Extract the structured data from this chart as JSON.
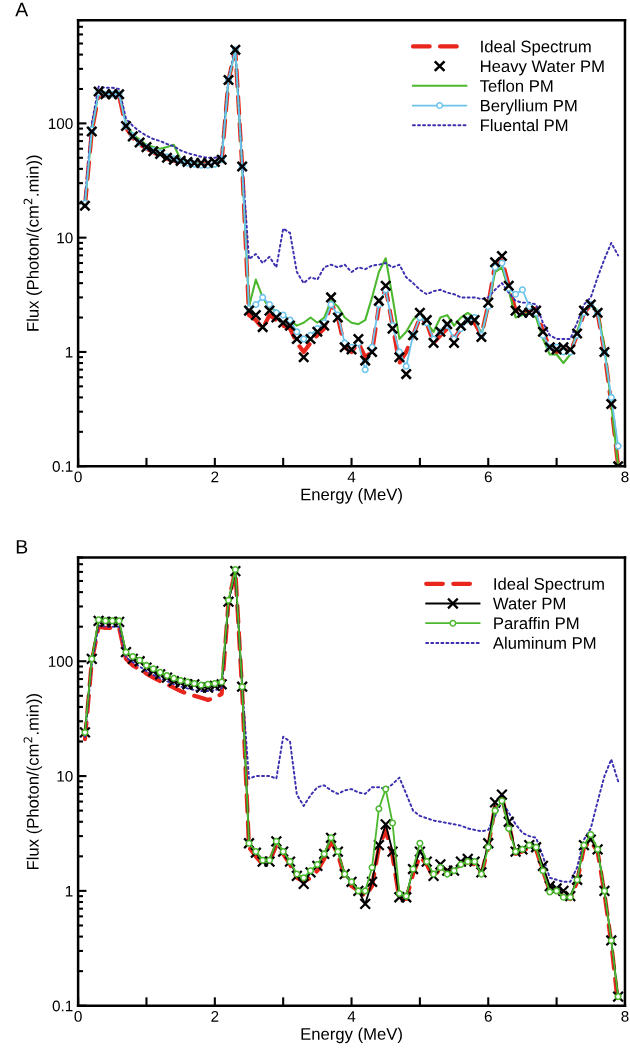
{
  "chart_data": [
    {
      "type": "line",
      "title": "A",
      "xlabel": "Energy (MeV)",
      "ylabel": "Flux (Photon/(cm$^{2}$.min))",
      "log": "y",
      "legend": "top right",
      "grid": false,
      "xlim": [
        0,
        8
      ],
      "xticks": [
        0,
        {
          "value": 1,
          "label": null
        },
        2,
        {
          "value": 3,
          "label": null
        },
        4,
        {
          "value": 5,
          "label": null
        },
        6,
        {
          "value": 7,
          "label": null
        },
        8
      ],
      "ylim": [
        0.1,
        800
      ],
      "yticks": [
        0.1,
        1,
        10,
        100
      ],
      "x": [
        0.1,
        0.2,
        0.3,
        0.4,
        0.5,
        0.6,
        0.7,
        0.8,
        0.9,
        1.0,
        1.1,
        1.2,
        1.3,
        1.4,
        1.5,
        1.6,
        1.7,
        1.8,
        1.9,
        2.0,
        2.1,
        2.2,
        2.3,
        2.4,
        2.5,
        2.6,
        2.7,
        2.8,
        2.9,
        3.0,
        3.1,
        3.2,
        3.3,
        3.4,
        3.5,
        3.6,
        3.7,
        3.8,
        3.9,
        4.0,
        4.1,
        4.2,
        4.3,
        4.4,
        4.5,
        4.6,
        4.7,
        4.8,
        4.9,
        5.0,
        5.1,
        5.2,
        5.3,
        5.4,
        5.5,
        5.6,
        5.7,
        5.8,
        5.9,
        6.0,
        6.1,
        6.2,
        6.3,
        6.4,
        6.5,
        6.6,
        6.7,
        6.8,
        6.9,
        7.0,
        7.1,
        7.2,
        7.3,
        7.4,
        7.5,
        7.6,
        7.7,
        7.8,
        7.9
      ],
      "series": [
        {
          "name": "Ideal Spectrum",
          "color": "#e8261c",
          "line_style": "dashed",
          "marker": "none",
          "values": [
            19,
            85,
            180,
            175,
            175,
            175,
            92,
            75,
            66,
            60,
            56,
            52,
            49,
            47,
            46,
            45,
            44,
            44,
            44,
            45,
            47,
            240,
            440,
            42,
            2.1,
            1.9,
            1.6,
            2.1,
            1.9,
            1.7,
            1.6,
            1.2,
            1.0,
            1.2,
            1.4,
            1.6,
            2.7,
            2.0,
            1.1,
            1.0,
            1.2,
            0.9,
            1.0,
            2.5,
            3.6,
            1.7,
            0.8,
            1.0,
            1.4,
            2.0,
            1.8,
            1.2,
            1.4,
            1.6,
            1.3,
            1.6,
            1.8,
            1.8,
            1.4,
            2.6,
            5.8,
            6.4,
            3.8,
            2.3,
            2.2,
            2.3,
            2.4,
            1.5,
            1.1,
            1.0,
            1.05,
            1.0,
            1.4,
            2.2,
            2.6,
            2.2,
            1.0,
            0.35,
            0.1
          ]
        },
        {
          "name": "Heavy Water PM",
          "type": "scatter",
          "color": "#000000",
          "marker": "cross",
          "values": [
            19,
            85,
            190,
            180,
            180,
            180,
            95,
            77,
            68,
            62,
            57,
            54,
            50,
            48,
            47,
            46,
            45,
            45,
            45,
            46,
            48,
            240,
            440,
            42,
            2.3,
            2.1,
            1.65,
            2.3,
            2.0,
            1.8,
            1.7,
            1.3,
            0.9,
            1.3,
            1.5,
            1.7,
            3.0,
            2.0,
            1.1,
            1.05,
            1.3,
            0.84,
            1.0,
            2.8,
            3.8,
            1.6,
            0.9,
            0.64,
            1.4,
            2.2,
            1.9,
            1.2,
            1.5,
            1.75,
            1.2,
            1.7,
            1.9,
            1.9,
            1.35,
            2.7,
            6.1,
            6.9,
            3.8,
            2.3,
            2.2,
            2.2,
            2.3,
            1.5,
            1.1,
            1.05,
            1.1,
            1.05,
            1.45,
            2.3,
            2.6,
            2.2,
            1.0,
            0.35,
            0.1
          ]
        },
        {
          "name": "Teflon PM",
          "color": "#4cb82e",
          "line_style": "solid",
          "marker": "none",
          "values": [
            20,
            85,
            190,
            185,
            185,
            190,
            100,
            80,
            72,
            65,
            62,
            60,
            62,
            65,
            48,
            46,
            45,
            44,
            43,
            42,
            50,
            240,
            440,
            42,
            2.5,
            4.3,
            3.0,
            2.4,
            2.3,
            2.1,
            1.9,
            1.7,
            1.8,
            2.0,
            1.8,
            2.0,
            2.8,
            2.5,
            2.0,
            1.8,
            1.75,
            1.9,
            3.0,
            5.0,
            6.6,
            3.0,
            1.3,
            1.5,
            1.9,
            2.2,
            1.8,
            1.5,
            2.0,
            2.1,
            1.7,
            2.0,
            2.2,
            2.0,
            1.4,
            2.5,
            5.0,
            5.5,
            3.5,
            2.0,
            2.1,
            2.2,
            2.0,
            1.3,
            0.95,
            0.95,
            0.8,
            0.95,
            1.5,
            2.3,
            2.6,
            2.3,
            1.1,
            0.35,
            0.1
          ]
        },
        {
          "name": "Beryllium PM",
          "color": "#6cc4ec",
          "line_style": "solid",
          "marker": "circle",
          "values": [
            20,
            88,
            185,
            180,
            180,
            180,
            95,
            78,
            68,
            62,
            58,
            55,
            51,
            49,
            47,
            45,
            44,
            43,
            43,
            44,
            48,
            240,
            440,
            42,
            2.4,
            2.6,
            3.0,
            2.6,
            2.2,
            2.1,
            1.9,
            1.5,
            1.3,
            1.4,
            1.6,
            1.8,
            2.6,
            2.1,
            1.2,
            1.1,
            1.2,
            0.7,
            1.1,
            2.6,
            3.5,
            1.7,
            1.0,
            0.75,
            1.4,
            2.0,
            1.8,
            1.3,
            1.5,
            1.7,
            1.3,
            1.6,
            1.9,
            2.0,
            1.4,
            2.5,
            5.5,
            6.0,
            3.6,
            3.2,
            3.5,
            2.5,
            2.2,
            1.4,
            1.1,
            1.1,
            1.0,
            1.0,
            1.4,
            2.2,
            2.6,
            2.2,
            1.0,
            0.4,
            0.15
          ]
        },
        {
          "name": "Fluental PM",
          "color": "#3b2fb0",
          "line_style": "dotted",
          "marker": "none",
          "values": [
            22,
            100,
            210,
            205,
            205,
            200,
            110,
            95,
            85,
            78,
            73,
            70,
            66,
            63,
            58,
            55,
            53,
            51,
            50,
            50,
            52,
            250,
            450,
            45,
            6.5,
            7.2,
            6.0,
            6.8,
            5.5,
            12,
            11,
            5.0,
            4.0,
            4.5,
            4.3,
            5.5,
            5.8,
            5.5,
            5.8,
            5.0,
            5.5,
            5.3,
            5.7,
            5.8,
            6.0,
            5.5,
            5.8,
            4.5,
            4.0,
            3.5,
            3.2,
            3.4,
            3.5,
            3.3,
            3.2,
            3.0,
            3.0,
            3.0,
            2.9,
            3.0,
            3.5,
            4.0,
            3.3,
            2.8,
            2.7,
            2.7,
            2.6,
            1.8,
            1.4,
            1.3,
            1.3,
            1.3,
            1.8,
            2.6,
            3.0,
            4.5,
            6.5,
            9.0,
            7.0
          ]
        }
      ]
    },
    {
      "type": "line",
      "title": "B",
      "xlabel": "Energy (MeV)",
      "ylabel": "Flux (Photon/(cm$^{2}$.min))",
      "log": "y",
      "legend": "top right",
      "grid": false,
      "xlim": [
        0,
        8
      ],
      "xticks": [
        0,
        {
          "value": 1,
          "label": null
        },
        2,
        {
          "value": 3,
          "label": null
        },
        4,
        {
          "value": 5,
          "label": null
        },
        6,
        {
          "value": 7,
          "label": null
        },
        8
      ],
      "ylim": [
        0.1,
        800
      ],
      "yticks": [
        0.1,
        1,
        10,
        100
      ],
      "x": [
        0.1,
        0.2,
        0.3,
        0.4,
        0.5,
        0.6,
        0.7,
        0.8,
        0.9,
        1.0,
        1.1,
        1.2,
        1.3,
        1.4,
        1.5,
        1.6,
        1.7,
        1.8,
        1.9,
        2.0,
        2.1,
        2.2,
        2.3,
        2.4,
        2.5,
        2.6,
        2.7,
        2.8,
        2.9,
        3.0,
        3.1,
        3.2,
        3.3,
        3.4,
        3.5,
        3.6,
        3.7,
        3.8,
        3.9,
        4.0,
        4.1,
        4.2,
        4.3,
        4.4,
        4.5,
        4.6,
        4.7,
        4.8,
        4.9,
        5.0,
        5.1,
        5.2,
        5.3,
        5.4,
        5.5,
        5.6,
        5.7,
        5.8,
        5.9,
        6.0,
        6.1,
        6.2,
        6.3,
        6.4,
        6.5,
        6.6,
        6.7,
        6.8,
        6.9,
        7.0,
        7.1,
        7.2,
        7.3,
        7.4,
        7.5,
        7.6,
        7.7,
        7.8,
        7.9
      ],
      "series": [
        {
          "name": "Ideal Spectrum",
          "color": "#e8261c",
          "line_style": "dashed",
          "marker": "none",
          "values": [
            21,
            100,
            200,
            195,
            195,
            195,
            105,
            92,
            85,
            78,
            72,
            67,
            63,
            59,
            55,
            52,
            50,
            48,
            46,
            48,
            52,
            330,
            620,
            55,
            2.4,
            2.0,
            1.7,
            1.8,
            2.5,
            2.1,
            1.7,
            1.3,
            1.2,
            1.3,
            1.5,
            1.9,
            2.7,
            2.1,
            1.3,
            1.1,
            1.0,
            0.9,
            1.1,
            2.4,
            3.4,
            2.0,
            0.85,
            0.85,
            1.4,
            2.0,
            1.7,
            1.3,
            1.6,
            1.5,
            1.5,
            1.7,
            1.8,
            1.7,
            1.4,
            2.4,
            5.5,
            6.5,
            3.8,
            2.1,
            2.2,
            2.4,
            2.3,
            1.5,
            1.0,
            1.0,
            0.9,
            0.85,
            1.2,
            2.4,
            2.7,
            2.2,
            0.95,
            0.35,
            0.1
          ]
        },
        {
          "name": "Water PM",
          "color": "#000000",
          "line_style": "solid",
          "marker": "cross",
          "values": [
            24,
            105,
            225,
            220,
            220,
            220,
            120,
            105,
            100,
            88,
            82,
            77,
            72,
            67,
            65,
            63,
            63,
            59,
            59,
            61,
            63,
            330,
            610,
            60,
            2.6,
            2.15,
            1.8,
            1.8,
            2.7,
            2.2,
            1.8,
            1.35,
            1.15,
            1.45,
            1.65,
            2.1,
            2.9,
            2.2,
            1.4,
            1.2,
            1.0,
            0.77,
            1.2,
            2.5,
            3.8,
            2.2,
            0.88,
            0.88,
            1.55,
            2.2,
            1.8,
            1.35,
            1.7,
            1.5,
            1.5,
            1.8,
            1.9,
            1.8,
            1.45,
            2.6,
            5.9,
            6.9,
            4.0,
            2.2,
            2.3,
            2.5,
            2.4,
            1.65,
            1.1,
            1.05,
            1.0,
            0.9,
            1.25,
            2.5,
            2.8,
            2.3,
            1.0,
            0.37,
            0.12
          ]
        },
        {
          "name": "Paraffin PM",
          "color": "#4cb82e",
          "line_style": "solid",
          "marker": "circle",
          "values": [
            24,
            105,
            230,
            225,
            225,
            225,
            120,
            110,
            102,
            92,
            86,
            80,
            75,
            71,
            68,
            66,
            64,
            62,
            63,
            64,
            66,
            340,
            630,
            60,
            2.6,
            2.2,
            1.85,
            1.85,
            2.7,
            2.2,
            1.8,
            1.4,
            1.3,
            1.5,
            1.7,
            2.1,
            2.9,
            2.2,
            1.4,
            1.2,
            1.0,
            1.0,
            1.6,
            5.2,
            7.7,
            3.9,
            0.95,
            0.9,
            1.55,
            2.6,
            1.8,
            1.4,
            1.6,
            1.4,
            1.5,
            1.7,
            1.8,
            1.8,
            1.4,
            2.4,
            5.0,
            6.1,
            3.5,
            2.2,
            2.3,
            2.5,
            2.4,
            1.5,
            0.98,
            1.0,
            0.88,
            0.88,
            1.25,
            2.5,
            3.1,
            2.3,
            1.0,
            0.37,
            0.12
          ]
        },
        {
          "name": "Aluminum PM",
          "color": "#3b2fb0",
          "line_style": "dotted",
          "marker": "none",
          "values": [
            22,
            95,
            205,
            200,
            200,
            200,
            108,
            98,
            90,
            82,
            76,
            71,
            67,
            63,
            60,
            58,
            56,
            55,
            55,
            56,
            58,
            330,
            600,
            60,
            9.5,
            10,
            10,
            10,
            9.5,
            22,
            20,
            6.9,
            5.5,
            6.8,
            8.0,
            8.3,
            7.5,
            7.0,
            7.5,
            7.7,
            7.2,
            7.0,
            8.0,
            8.0,
            7.7,
            8.5,
            9.7,
            7.0,
            5.0,
            4.5,
            4.3,
            4.1,
            4.0,
            3.9,
            3.8,
            3.7,
            3.5,
            3.4,
            3.3,
            3.4,
            4.5,
            6.0,
            4.8,
            3.8,
            3.2,
            3.0,
            2.9,
            2.0,
            1.3,
            1.25,
            1.2,
            1.2,
            1.6,
            2.8,
            3.5,
            6.0,
            10,
            14,
            9
          ]
        }
      ]
    }
  ]
}
